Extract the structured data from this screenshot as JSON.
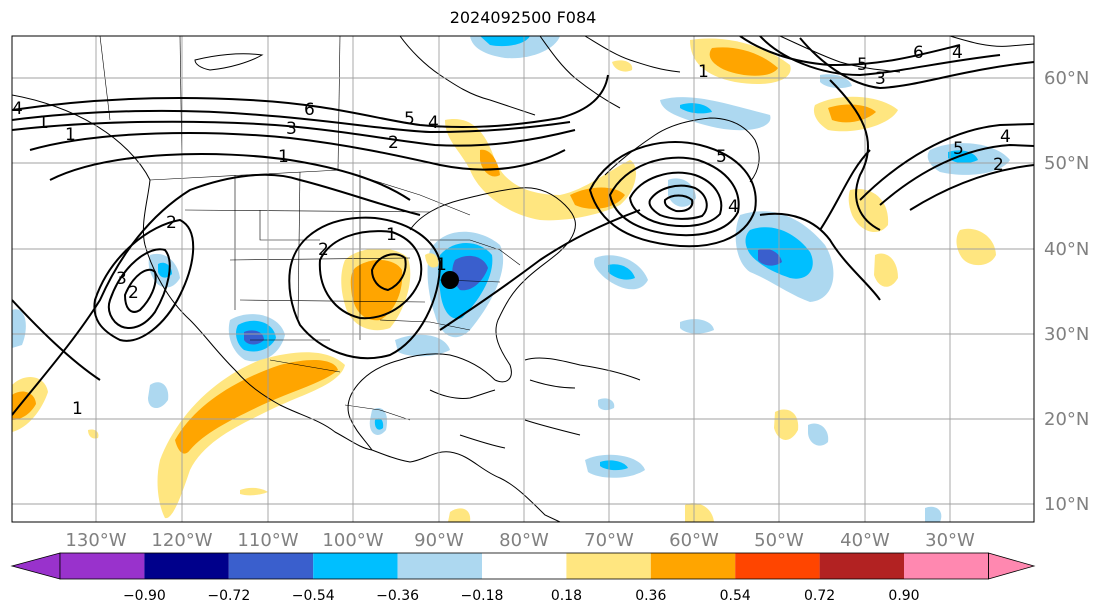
{
  "title": "2024092500 F084",
  "map": {
    "lon_labels": [
      "130°W",
      "120°W",
      "110°W",
      "100°W",
      "90°W",
      "80°W",
      "70°W",
      "60°W",
      "50°W",
      "40°W",
      "30°W"
    ],
    "lat_labels": [
      "60°N",
      "50°N",
      "40°N",
      "30°N",
      "20°N",
      "10°N"
    ],
    "contour_labels": [
      "6",
      "5",
      "4",
      "3",
      "2",
      "1",
      "1",
      "2",
      "2",
      "3",
      "4",
      "1",
      "1",
      "6",
      "5",
      "4",
      "3",
      "5",
      "4",
      "2",
      "4",
      "5",
      "1",
      "1",
      "1",
      "2"
    ],
    "marker": "storm-center",
    "grid": true
  },
  "colorbar": {
    "ticks": [
      "−0.90",
      "−0.72",
      "−0.54",
      "−0.36",
      "−0.18",
      "0.18",
      "0.36",
      "0.54",
      "0.72",
      "0.90"
    ],
    "colors": [
      "#9932cc",
      "#00008b",
      "#3a5fcd",
      "#00bfff",
      "#add8f0",
      "#ffffff",
      "#ffe680",
      "#ffa500",
      "#ff4500",
      "#b22222",
      "#ff88b0"
    ]
  }
}
